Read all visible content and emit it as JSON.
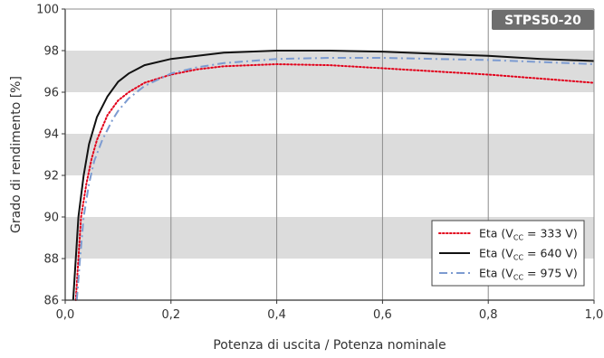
{
  "chart_data": {
    "type": "line",
    "title": "STPS50-20",
    "xlabel": "Potenza di uscita / Potenza nominale",
    "ylabel": "Grado di rendimento [%]",
    "xlim": [
      0,
      1
    ],
    "ylim": [
      86,
      100
    ],
    "x_ticks": [
      "0,0",
      "0,2",
      "0,4",
      "0,6",
      "0,8",
      "1,0"
    ],
    "y_ticks": [
      "86",
      "88",
      "90",
      "92",
      "94",
      "96",
      "98",
      "100"
    ],
    "grid": {
      "horizontal_bands": true,
      "vertical_lines": true
    },
    "legend_position": "bottom-right",
    "series": [
      {
        "name": "Eta (V",
        "name_sub": "CC",
        "name_rest": " = 333 V)",
        "color": "#e2001a",
        "style": "dotted",
        "points": [
          [
            0.02,
            86
          ],
          [
            0.025,
            88
          ],
          [
            0.03,
            90
          ],
          [
            0.04,
            91.6
          ],
          [
            0.05,
            92.8
          ],
          [
            0.06,
            93.7
          ],
          [
            0.08,
            94.9
          ],
          [
            0.1,
            95.6
          ],
          [
            0.12,
            96.0
          ],
          [
            0.15,
            96.45
          ],
          [
            0.2,
            96.85
          ],
          [
            0.25,
            97.1
          ],
          [
            0.3,
            97.25
          ],
          [
            0.4,
            97.35
          ],
          [
            0.5,
            97.3
          ],
          [
            0.6,
            97.15
          ],
          [
            0.7,
            97.0
          ],
          [
            0.8,
            96.85
          ],
          [
            0.9,
            96.65
          ],
          [
            1.0,
            96.45
          ]
        ]
      },
      {
        "name": "Eta (V",
        "name_sub": "CC",
        "name_rest": " = 640 V)",
        "color": "#111111",
        "style": "solid",
        "points": [
          [
            0.015,
            86
          ],
          [
            0.02,
            88
          ],
          [
            0.025,
            90
          ],
          [
            0.035,
            92
          ],
          [
            0.045,
            93.5
          ],
          [
            0.06,
            94.8
          ],
          [
            0.08,
            95.8
          ],
          [
            0.1,
            96.5
          ],
          [
            0.12,
            96.9
          ],
          [
            0.15,
            97.3
          ],
          [
            0.2,
            97.6
          ],
          [
            0.3,
            97.9
          ],
          [
            0.4,
            98.0
          ],
          [
            0.5,
            98.0
          ],
          [
            0.6,
            97.95
          ],
          [
            0.7,
            97.85
          ],
          [
            0.8,
            97.75
          ],
          [
            0.9,
            97.6
          ],
          [
            1.0,
            97.5
          ]
        ]
      },
      {
        "name": "Eta (V",
        "name_sub": "CC",
        "name_rest": " = 975 V)",
        "color": "#7c9bd1",
        "style": "dashdot",
        "points": [
          [
            0.022,
            86
          ],
          [
            0.028,
            88
          ],
          [
            0.035,
            90
          ],
          [
            0.045,
            91.6
          ],
          [
            0.055,
            92.7
          ],
          [
            0.07,
            93.7
          ],
          [
            0.09,
            94.7
          ],
          [
            0.1,
            95.1
          ],
          [
            0.12,
            95.7
          ],
          [
            0.15,
            96.3
          ],
          [
            0.2,
            96.9
          ],
          [
            0.25,
            97.2
          ],
          [
            0.3,
            97.4
          ],
          [
            0.4,
            97.6
          ],
          [
            0.5,
            97.65
          ],
          [
            0.6,
            97.65
          ],
          [
            0.7,
            97.6
          ],
          [
            0.8,
            97.55
          ],
          [
            0.9,
            97.45
          ],
          [
            1.0,
            97.35
          ]
        ]
      }
    ]
  }
}
